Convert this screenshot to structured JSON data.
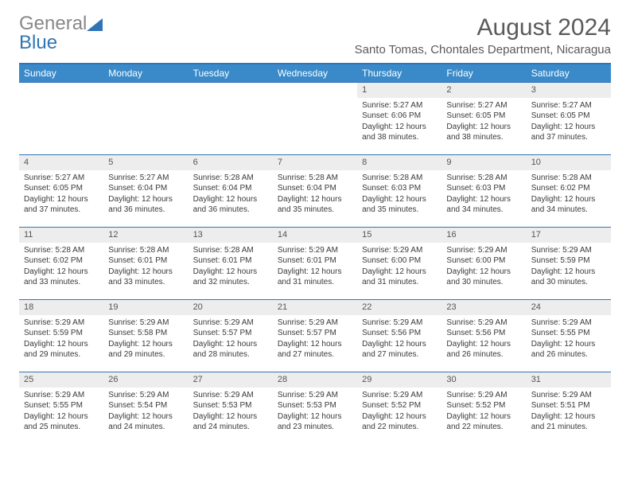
{
  "logo": {
    "part1": "General",
    "part2": "Blue"
  },
  "title": "August 2024",
  "location": "Santo Tomas, Chontales Department, Nicaragua",
  "colors": {
    "header_bg": "#3a8ac9",
    "header_border": "#2f75b5",
    "daynum_bg": "#ededed",
    "text": "#3a3a3a",
    "logo_gray": "#888888",
    "logo_blue": "#2f75b5"
  },
  "weekdays": [
    "Sunday",
    "Monday",
    "Tuesday",
    "Wednesday",
    "Thursday",
    "Friday",
    "Saturday"
  ],
  "weeks": [
    [
      {
        "empty": true
      },
      {
        "empty": true
      },
      {
        "empty": true
      },
      {
        "empty": true
      },
      {
        "day": "1",
        "sunrise": "Sunrise: 5:27 AM",
        "sunset": "Sunset: 6:06 PM",
        "daylight": "Daylight: 12 hours and 38 minutes."
      },
      {
        "day": "2",
        "sunrise": "Sunrise: 5:27 AM",
        "sunset": "Sunset: 6:05 PM",
        "daylight": "Daylight: 12 hours and 38 minutes."
      },
      {
        "day": "3",
        "sunrise": "Sunrise: 5:27 AM",
        "sunset": "Sunset: 6:05 PM",
        "daylight": "Daylight: 12 hours and 37 minutes."
      }
    ],
    [
      {
        "day": "4",
        "sunrise": "Sunrise: 5:27 AM",
        "sunset": "Sunset: 6:05 PM",
        "daylight": "Daylight: 12 hours and 37 minutes."
      },
      {
        "day": "5",
        "sunrise": "Sunrise: 5:27 AM",
        "sunset": "Sunset: 6:04 PM",
        "daylight": "Daylight: 12 hours and 36 minutes."
      },
      {
        "day": "6",
        "sunrise": "Sunrise: 5:28 AM",
        "sunset": "Sunset: 6:04 PM",
        "daylight": "Daylight: 12 hours and 36 minutes."
      },
      {
        "day": "7",
        "sunrise": "Sunrise: 5:28 AM",
        "sunset": "Sunset: 6:04 PM",
        "daylight": "Daylight: 12 hours and 35 minutes."
      },
      {
        "day": "8",
        "sunrise": "Sunrise: 5:28 AM",
        "sunset": "Sunset: 6:03 PM",
        "daylight": "Daylight: 12 hours and 35 minutes."
      },
      {
        "day": "9",
        "sunrise": "Sunrise: 5:28 AM",
        "sunset": "Sunset: 6:03 PM",
        "daylight": "Daylight: 12 hours and 34 minutes."
      },
      {
        "day": "10",
        "sunrise": "Sunrise: 5:28 AM",
        "sunset": "Sunset: 6:02 PM",
        "daylight": "Daylight: 12 hours and 34 minutes."
      }
    ],
    [
      {
        "day": "11",
        "sunrise": "Sunrise: 5:28 AM",
        "sunset": "Sunset: 6:02 PM",
        "daylight": "Daylight: 12 hours and 33 minutes."
      },
      {
        "day": "12",
        "sunrise": "Sunrise: 5:28 AM",
        "sunset": "Sunset: 6:01 PM",
        "daylight": "Daylight: 12 hours and 33 minutes."
      },
      {
        "day": "13",
        "sunrise": "Sunrise: 5:28 AM",
        "sunset": "Sunset: 6:01 PM",
        "daylight": "Daylight: 12 hours and 32 minutes."
      },
      {
        "day": "14",
        "sunrise": "Sunrise: 5:29 AM",
        "sunset": "Sunset: 6:01 PM",
        "daylight": "Daylight: 12 hours and 31 minutes."
      },
      {
        "day": "15",
        "sunrise": "Sunrise: 5:29 AM",
        "sunset": "Sunset: 6:00 PM",
        "daylight": "Daylight: 12 hours and 31 minutes."
      },
      {
        "day": "16",
        "sunrise": "Sunrise: 5:29 AM",
        "sunset": "Sunset: 6:00 PM",
        "daylight": "Daylight: 12 hours and 30 minutes."
      },
      {
        "day": "17",
        "sunrise": "Sunrise: 5:29 AM",
        "sunset": "Sunset: 5:59 PM",
        "daylight": "Daylight: 12 hours and 30 minutes."
      }
    ],
    [
      {
        "day": "18",
        "sunrise": "Sunrise: 5:29 AM",
        "sunset": "Sunset: 5:59 PM",
        "daylight": "Daylight: 12 hours and 29 minutes."
      },
      {
        "day": "19",
        "sunrise": "Sunrise: 5:29 AM",
        "sunset": "Sunset: 5:58 PM",
        "daylight": "Daylight: 12 hours and 29 minutes."
      },
      {
        "day": "20",
        "sunrise": "Sunrise: 5:29 AM",
        "sunset": "Sunset: 5:57 PM",
        "daylight": "Daylight: 12 hours and 28 minutes."
      },
      {
        "day": "21",
        "sunrise": "Sunrise: 5:29 AM",
        "sunset": "Sunset: 5:57 PM",
        "daylight": "Daylight: 12 hours and 27 minutes."
      },
      {
        "day": "22",
        "sunrise": "Sunrise: 5:29 AM",
        "sunset": "Sunset: 5:56 PM",
        "daylight": "Daylight: 12 hours and 27 minutes."
      },
      {
        "day": "23",
        "sunrise": "Sunrise: 5:29 AM",
        "sunset": "Sunset: 5:56 PM",
        "daylight": "Daylight: 12 hours and 26 minutes."
      },
      {
        "day": "24",
        "sunrise": "Sunrise: 5:29 AM",
        "sunset": "Sunset: 5:55 PM",
        "daylight": "Daylight: 12 hours and 26 minutes."
      }
    ],
    [
      {
        "day": "25",
        "sunrise": "Sunrise: 5:29 AM",
        "sunset": "Sunset: 5:55 PM",
        "daylight": "Daylight: 12 hours and 25 minutes."
      },
      {
        "day": "26",
        "sunrise": "Sunrise: 5:29 AM",
        "sunset": "Sunset: 5:54 PM",
        "daylight": "Daylight: 12 hours and 24 minutes."
      },
      {
        "day": "27",
        "sunrise": "Sunrise: 5:29 AM",
        "sunset": "Sunset: 5:53 PM",
        "daylight": "Daylight: 12 hours and 24 minutes."
      },
      {
        "day": "28",
        "sunrise": "Sunrise: 5:29 AM",
        "sunset": "Sunset: 5:53 PM",
        "daylight": "Daylight: 12 hours and 23 minutes."
      },
      {
        "day": "29",
        "sunrise": "Sunrise: 5:29 AM",
        "sunset": "Sunset: 5:52 PM",
        "daylight": "Daylight: 12 hours and 22 minutes."
      },
      {
        "day": "30",
        "sunrise": "Sunrise: 5:29 AM",
        "sunset": "Sunset: 5:52 PM",
        "daylight": "Daylight: 12 hours and 22 minutes."
      },
      {
        "day": "31",
        "sunrise": "Sunrise: 5:29 AM",
        "sunset": "Sunset: 5:51 PM",
        "daylight": "Daylight: 12 hours and 21 minutes."
      }
    ]
  ]
}
